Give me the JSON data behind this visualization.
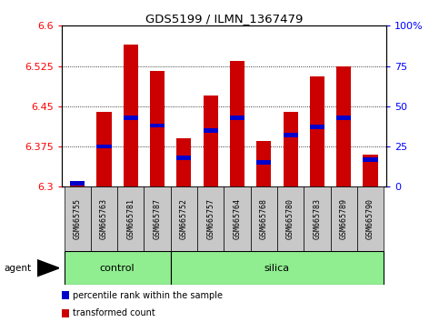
{
  "title": "GDS5199 / ILMN_1367479",
  "samples": [
    "GSM665755",
    "GSM665763",
    "GSM665781",
    "GSM665787",
    "GSM665752",
    "GSM665757",
    "GSM665764",
    "GSM665768",
    "GSM665780",
    "GSM665783",
    "GSM665789",
    "GSM665790"
  ],
  "groups": [
    "control",
    "control",
    "control",
    "control",
    "silica",
    "silica",
    "silica",
    "silica",
    "silica",
    "silica",
    "silica",
    "silica"
  ],
  "transformed_counts": [
    6.305,
    6.44,
    6.565,
    6.515,
    6.39,
    6.47,
    6.535,
    6.385,
    6.44,
    6.505,
    6.525,
    6.36
  ],
  "percentile_ranks": [
    2,
    25,
    43,
    38,
    18,
    35,
    43,
    15,
    32,
    37,
    43,
    17
  ],
  "ylim_left": [
    6.3,
    6.6
  ],
  "ylim_right": [
    0,
    100
  ],
  "yticks_left": [
    6.3,
    6.375,
    6.45,
    6.525,
    6.6
  ],
  "yticks_right": [
    0,
    25,
    50,
    75,
    100
  ],
  "ytick_labels_left": [
    "6.3",
    "6.375",
    "6.45",
    "6.525",
    "6.6"
  ],
  "ytick_labels_right": [
    "0",
    "25",
    "50",
    "75",
    "100%"
  ],
  "bar_color": "#cc0000",
  "percentile_color": "#0000cc",
  "group_bg_color": "#90ee90",
  "tick_bg_color": "#c8c8c8",
  "bar_width": 0.55,
  "baseline": 6.3,
  "legend_items": [
    "transformed count",
    "percentile rank within the sample"
  ],
  "legend_colors": [
    "#cc0000",
    "#0000cc"
  ],
  "n_control": 4,
  "n_silica": 8
}
